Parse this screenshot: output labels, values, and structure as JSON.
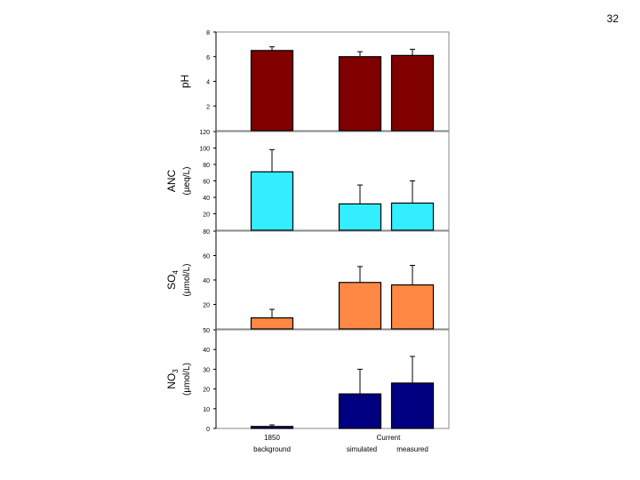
{
  "page": {
    "number": "32"
  },
  "chart_data": {
    "type": "bar",
    "grid": false,
    "legend": "none",
    "categories": [
      {
        "line1": "1850",
        "line2": "background"
      },
      {
        "line1": "",
        "line2": "simulated"
      },
      {
        "line1": "",
        "line2": "measured"
      }
    ],
    "group_label": "Current",
    "panels": [
      {
        "id": "ph",
        "ylabel": "pH",
        "ylabel_sub": "",
        "unit": "",
        "color": "#800000",
        "ylim": [
          0,
          8
        ],
        "ticks": [
          2,
          4,
          6,
          8
        ],
        "values": [
          6.5,
          6.0,
          6.1
        ],
        "errors": [
          0.3,
          0.4,
          0.5
        ]
      },
      {
        "id": "anc",
        "ylabel": "ANC",
        "ylabel_sub": "",
        "unit": "(µeq/L)",
        "color": "#33eeff",
        "ylim": [
          0,
          120
        ],
        "ticks": [
          20,
          40,
          60,
          80,
          100,
          120
        ],
        "values": [
          71,
          32,
          33
        ],
        "errors": [
          27,
          23,
          27
        ]
      },
      {
        "id": "so4",
        "ylabel": "SO",
        "ylabel_sub": "4",
        "unit": "(µmol/L)",
        "color": "#ff8844",
        "ylim": [
          0,
          80
        ],
        "ticks": [
          20,
          40,
          60,
          80
        ],
        "values": [
          9,
          38,
          36
        ],
        "errors": [
          7,
          13,
          16
        ]
      },
      {
        "id": "no3",
        "ylabel": "NO",
        "ylabel_sub": "3",
        "unit": "(µmol/L)",
        "color": "#000080",
        "ylim": [
          0,
          50
        ],
        "ticks": [
          0,
          10,
          20,
          30,
          40,
          50
        ],
        "values": [
          1,
          17.5,
          23
        ],
        "errors": [
          0.8,
          12.5,
          13.5
        ]
      }
    ]
  }
}
